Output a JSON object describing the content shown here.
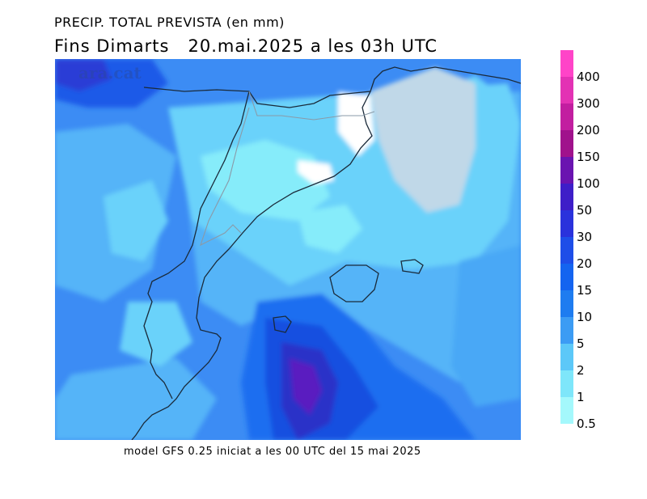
{
  "title": {
    "line1": "PRECIP. TOTAL PREVISTA (en mm)",
    "line2": "Fins Dimarts   20.mai.2025 a les 03h UTC"
  },
  "watermark": "ara.cat",
  "footer": "model GFS 0.25 iniciat a les 00 UTC del 15 mai 2025",
  "legend": {
    "levels": [
      "400",
      "300",
      "200",
      "150",
      "100",
      "50",
      "30",
      "20",
      "15",
      "10",
      "5",
      "2",
      "1",
      "0.5"
    ],
    "colors": [
      "#ff44c8",
      "#e332b4",
      "#c21ea0",
      "#a0128c",
      "#6a14b0",
      "#3e1ec8",
      "#2a32dc",
      "#1e4ee8",
      "#1464f0",
      "#1e7cf0",
      "#3c9cf4",
      "#5cc8f8",
      "#7ee6fa",
      "#a4f8fc"
    ]
  }
}
